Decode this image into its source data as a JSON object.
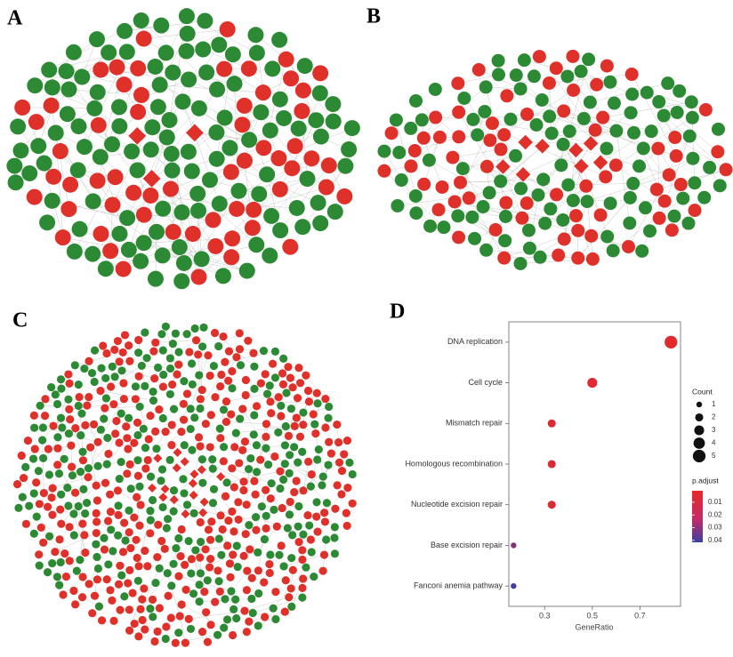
{
  "panel_labels": [
    "A",
    "B",
    "C",
    "D"
  ],
  "chart_data": {
    "type": "dot",
    "categories": [
      "DNA replication",
      "Cell cycle",
      "Mismatch repair",
      "Homologous recombination",
      "Nucleotide excision repair",
      "Base excision repair",
      "Fanconi anemia pathway"
    ],
    "values": [
      0.83,
      0.5,
      0.33,
      0.33,
      0.33,
      0.17,
      0.17
    ],
    "size_values": [
      5,
      3,
      2,
      2,
      2,
      1,
      1
    ],
    "color_values": [
      0.002,
      0.003,
      0.004,
      0.004,
      0.004,
      0.025,
      0.04
    ],
    "x_label": "GeneRatio",
    "xlim": [
      0.15,
      0.87
    ],
    "xticks": [
      0.3,
      0.5,
      0.7
    ],
    "size_legend": {
      "title": "Count",
      "values": [
        1,
        2,
        3,
        4,
        5
      ]
    },
    "color_legend": {
      "title": "p.adjust",
      "lim": [
        0.001,
        0.0415
      ],
      "ticks": [
        0.01,
        0.02,
        0.03,
        0.04
      ],
      "low_color": "#e8282a",
      "high_color": "#3c3fa2"
    }
  }
}
